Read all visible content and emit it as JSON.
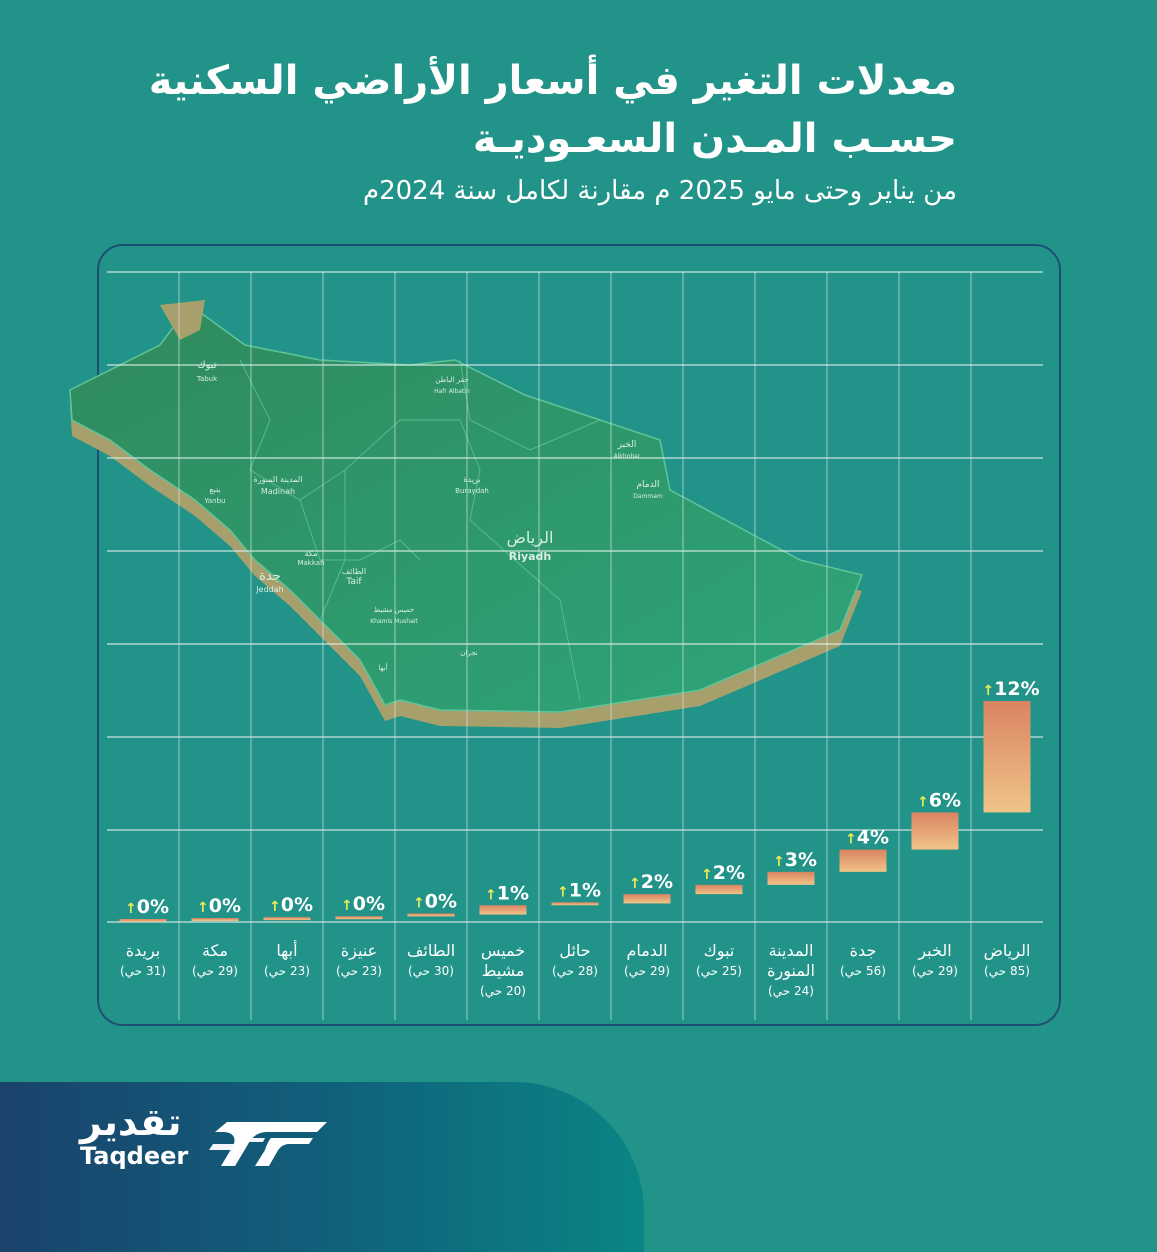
{
  "header": {
    "line1": "معدلات التغير في أسعار الأراضي السكنية",
    "line2": "حسـب المـدن السعـوديـة",
    "line3": "من يناير وحتى مايو 2025 م مقارنة لكامل سنة 2024م"
  },
  "map_labels": [
    "تبوك",
    "Tabuk",
    "المدينة المنورة",
    "Madinah",
    "ينبع",
    "Yanbu",
    "مكة",
    "Makkah",
    "جدة",
    "Jeddah",
    "الطائف",
    "Taif",
    "خميس مشيط",
    "Khamis Mushait",
    "أبها",
    "بريدة",
    "Buraydah",
    "الرياض",
    "Riyadh",
    "الخبر",
    "Alkhobar",
    "الدمام",
    "Dammam",
    "حفر الباطن",
    "Hafr Albatin",
    "نجران"
  ],
  "chart_data": {
    "type": "bar",
    "subtype": "waterfall",
    "unit": "%",
    "arrow": "↑",
    "categories": [
      {
        "name": "بريدة",
        "count": "(31 حي)"
      },
      {
        "name": "مكة",
        "count": "(29 حي)"
      },
      {
        "name": "أبها",
        "count": "(23 حي)"
      },
      {
        "name": "عنيزة",
        "count": "(23 حي)"
      },
      {
        "name": "الطائف",
        "count": "(30 حي)"
      },
      {
        "name": "خميس مشيط",
        "count": "(20 حي)"
      },
      {
        "name": "حائل",
        "count": "(28 حي)"
      },
      {
        "name": "الدمام",
        "count": "(29 حي)"
      },
      {
        "name": "تبوك",
        "count": "(25 حي)"
      },
      {
        "name": "المدينة المنورة",
        "count": "(24 حي)"
      },
      {
        "name": "جدة",
        "count": "(56 حي)"
      },
      {
        "name": "الخبر",
        "count": "(29 حي)"
      },
      {
        "name": "الرياض",
        "count": "(85 حي)"
      }
    ],
    "labels": [
      "0%",
      "0%",
      "0%",
      "0%",
      "0%",
      "1%",
      "1%",
      "2%",
      "2%",
      "3%",
      "4%",
      "6%",
      "12%"
    ],
    "values": [
      0.05,
      0.1,
      0.15,
      0.3,
      0.4,
      0.9,
      1.0,
      1.5,
      2.0,
      2.7,
      3.9,
      5.9,
      11.9
    ],
    "ylim": [
      0,
      35
    ],
    "colors": {
      "bar_top": "#d98462",
      "bar_bottom": "#f0c488",
      "arrow": "#e6ec58",
      "label": "#ffffff",
      "grid": "#e6f2f0"
    }
  },
  "brand": {
    "name_ar": "تقدير",
    "name_en": "Taqdeer"
  }
}
